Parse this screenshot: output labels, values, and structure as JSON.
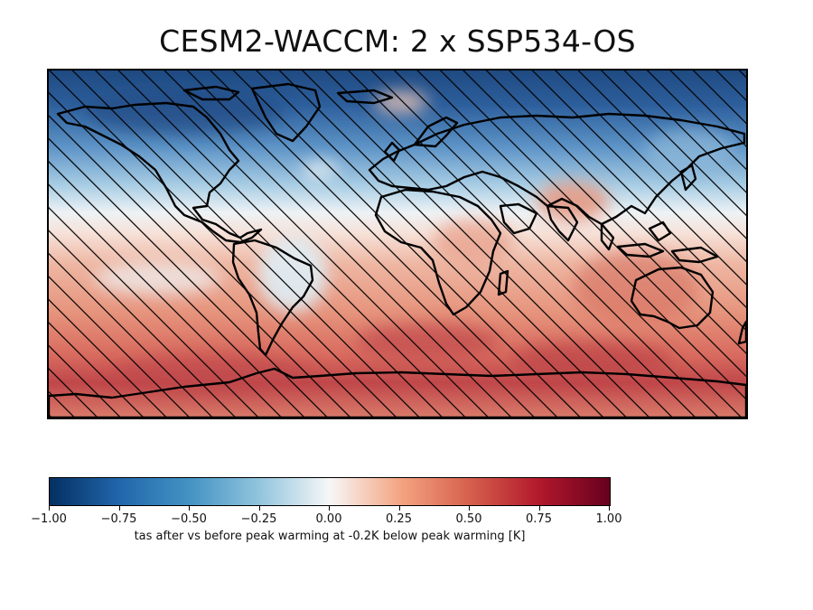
{
  "title": "CESM2-WACCM:  2 x SSP534-OS",
  "colorbar": {
    "ticks": [
      "−1.00",
      "−0.75",
      "−0.50",
      "−0.25",
      "0.00",
      "0.25",
      "0.50",
      "0.75",
      "1.00"
    ],
    "label": "tas after vs before peak warming at -0.2K below peak warming [K]",
    "range": [
      -1.0,
      1.0
    ],
    "colormap": "RdBu_r"
  },
  "map": {
    "projection": "equirectangular",
    "hatching": "diagonal",
    "colors": {
      "cold": "#2b5a94",
      "cool": "#6a9fcc",
      "pale_blue": "#d3e6f1",
      "neutral": "#f4f0ee",
      "warm": "#e8a08a",
      "hot": "#cf5e55",
      "very_hot": "#b53a3f"
    }
  }
}
